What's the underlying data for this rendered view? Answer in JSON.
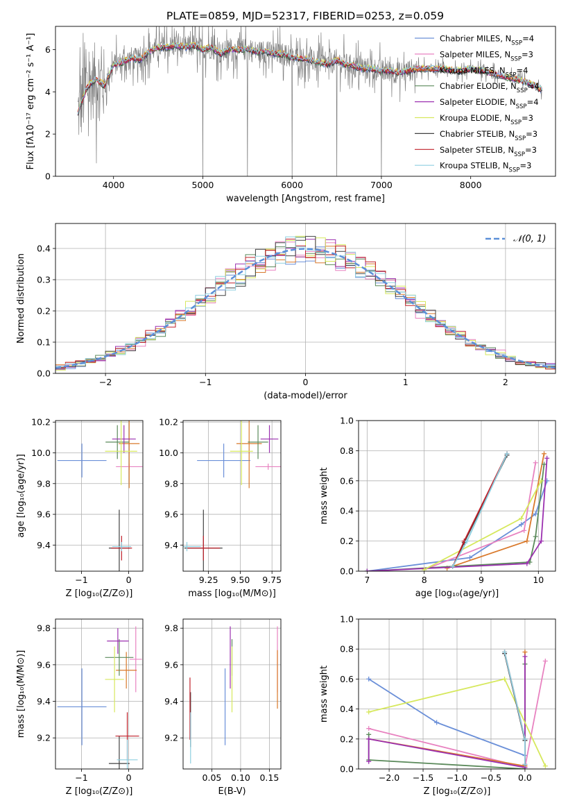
{
  "chart_data": [
    {
      "type": "line",
      "title": "PLATE=0859, MJD=52317, FIBERID=0253, z=0.059",
      "xlabel": "wavelength [Angstrom, rest frame]",
      "ylabel": "Flux [fλ10⁻¹⁷ erg cm⁻² s⁻¹ A⁻¹]",
      "xlim": [
        3350,
        8950
      ],
      "ylim": [
        0,
        7.1
      ],
      "xticks": [
        4000,
        5000,
        6000,
        7000,
        8000
      ],
      "yticks": [
        0,
        2,
        4,
        6
      ],
      "grid": false,
      "legend_placement": "right",
      "data_color": "#808080",
      "series": [
        {
          "name": "Chabrier MILES, N_SSP=4",
          "color": "#6a8fd8"
        },
        {
          "name": "Salpeter MILES, N_SSP=3",
          "color": "#e882c0"
        },
        {
          "name": "Kroupa MILES, N_SSP=4",
          "color": "#d9792b"
        },
        {
          "name": "Chabrier ELODIE, N_SSP=4",
          "color": "#5b8a5b"
        },
        {
          "name": "Salpeter ELODIE, N_SSP=4",
          "color": "#9b30b0"
        },
        {
          "name": "Kroupa ELODIE, N_SSP=3",
          "color": "#d6e85c"
        },
        {
          "name": "Chabrier STELIB, N_SSP=3",
          "color": "#404040"
        },
        {
          "name": "Salpeter STELIB, N_SSP=3",
          "color": "#c0202a"
        },
        {
          "name": "Kroupa STELIB, N_SSP=3",
          "color": "#8ecfe0"
        }
      ],
      "spectrum_shape": [
        [
          3600,
          3.0
        ],
        [
          3700,
          4.2
        ],
        [
          3800,
          4.6
        ],
        [
          3900,
          4.3
        ],
        [
          4000,
          5.3
        ],
        [
          4100,
          5.4
        ],
        [
          4200,
          5.6
        ],
        [
          4300,
          5.5
        ],
        [
          4400,
          5.9
        ],
        [
          4500,
          6.1
        ],
        [
          4600,
          6.1
        ],
        [
          4700,
          6.2
        ],
        [
          4800,
          6.1
        ],
        [
          4900,
          6.2
        ],
        [
          5000,
          6.0
        ],
        [
          5100,
          6.1
        ],
        [
          5200,
          5.8
        ],
        [
          5300,
          6.0
        ],
        [
          5400,
          6.0
        ],
        [
          5500,
          6.0
        ],
        [
          5600,
          5.9
        ],
        [
          5700,
          5.9
        ],
        [
          5800,
          5.8
        ],
        [
          5900,
          5.8
        ],
        [
          6000,
          5.6
        ],
        [
          6100,
          5.6
        ],
        [
          6200,
          5.5
        ],
        [
          6300,
          5.4
        ],
        [
          6400,
          5.3
        ],
        [
          6500,
          5.5
        ],
        [
          6600,
          5.3
        ],
        [
          6700,
          5.2
        ],
        [
          6800,
          5.1
        ],
        [
          6900,
          5.1
        ],
        [
          7000,
          5.0
        ],
        [
          7100,
          5.0
        ],
        [
          7200,
          4.9
        ],
        [
          7300,
          5.0
        ],
        [
          7400,
          5.1
        ],
        [
          7500,
          5.1
        ],
        [
          7600,
          5.1
        ],
        [
          7700,
          5.1
        ],
        [
          7800,
          5.0
        ],
        [
          7900,
          5.0
        ],
        [
          8000,
          5.1
        ],
        [
          8100,
          5.0
        ],
        [
          8200,
          4.9
        ],
        [
          8300,
          4.8
        ],
        [
          8400,
          4.7
        ],
        [
          8500,
          4.6
        ],
        [
          8600,
          4.5
        ],
        [
          8700,
          4.3
        ],
        [
          8800,
          4.1
        ]
      ]
    },
    {
      "type": "line",
      "xlabel": "(data-model)/error",
      "ylabel": "Normed distribution",
      "xlim": [
        -2.5,
        2.5
      ],
      "ylim": [
        0,
        0.48
      ],
      "xticks": [
        -2,
        -1,
        0,
        1,
        2
      ],
      "yticks": [
        0.0,
        0.1,
        0.2,
        0.3,
        0.4
      ],
      "grid": true,
      "legend": "𝒩(0, 1)",
      "legend_placement": "top-right",
      "bin_width": 0.1
    },
    {
      "type": "scatter",
      "xlabel": "Z [log₁₀(Z/Z⊙)]",
      "ylabel": "age  [log₁₀(age/yr)]",
      "xlim": [
        -1.55,
        0.3
      ],
      "ylim": [
        9.23,
        10.21
      ],
      "xticks": [
        -1,
        0
      ],
      "yticks": [
        9.4,
        9.6,
        9.8,
        10.0,
        10.2
      ],
      "grid": true,
      "points": [
        {
          "color": "#6a8fd8",
          "x": -0.99,
          "y": 9.95,
          "xerr": 0.52,
          "yerr": 0.11
        },
        {
          "color": "#e882c0",
          "x": 0.01,
          "y": 9.91,
          "xerr": 0.28,
          "yerr": 0.02
        },
        {
          "color": "#d9792b",
          "x": 0.01,
          "y": 10.06,
          "xerr": 0.22,
          "yerr": 0.29
        },
        {
          "color": "#5b8a5b",
          "x": -0.24,
          "y": 10.07,
          "xerr": 0.25,
          "yerr": 0.11
        },
        {
          "color": "#9b30b0",
          "x": -0.1,
          "y": 10.09,
          "xerr": 0.25,
          "yerr": 0.09
        },
        {
          "color": "#d6e85c",
          "x": -0.16,
          "y": 10.01,
          "xerr": 0.34,
          "yerr": 0.22
        },
        {
          "color": "#404040",
          "x": -0.2,
          "y": 9.38,
          "xerr": 0.22,
          "yerr": 0.25
        },
        {
          "color": "#c0202a",
          "x": -0.15,
          "y": 9.38,
          "xerr": 0.22,
          "yerr": 0.08
        },
        {
          "color": "#8ecfe0",
          "x": -0.15,
          "y": 9.39,
          "xerr": 0.2,
          "yerr": 0.03
        }
      ]
    },
    {
      "type": "scatter",
      "xlabel": "mass [log₁₀(M/M⊙)]",
      "ylabel": "",
      "xlim": [
        9.05,
        9.82
      ],
      "ylim": [
        9.23,
        10.21
      ],
      "xticks": [
        9.25,
        9.5,
        9.75
      ],
      "yticks": [
        9.4,
        9.6,
        9.8,
        10.0,
        10.2
      ],
      "grid": true,
      "points": [
        {
          "color": "#6a8fd8",
          "x": 9.37,
          "y": 9.95,
          "xerr": 0.21,
          "yerr": 0.11
        },
        {
          "color": "#e882c0",
          "x": 9.72,
          "y": 9.91,
          "xerr": 0.1,
          "yerr": 0.02
        },
        {
          "color": "#d9792b",
          "x": 9.57,
          "y": 10.06,
          "xerr": 0.1,
          "yerr": 0.29
        },
        {
          "color": "#5b8a5b",
          "x": 9.64,
          "y": 10.07,
          "xerr": 0.08,
          "yerr": 0.11
        },
        {
          "color": "#9b30b0",
          "x": 9.73,
          "y": 10.09,
          "xerr": 0.07,
          "yerr": 0.09
        },
        {
          "color": "#d6e85c",
          "x": 9.51,
          "y": 10.01,
          "xerr": 0.09,
          "yerr": 0.22
        },
        {
          "color": "#404040",
          "x": 9.21,
          "y": 9.38,
          "xerr": 0.15,
          "yerr": 0.25
        },
        {
          "color": "#c0202a",
          "x": 9.21,
          "y": 9.38,
          "xerr": 0.13,
          "yerr": 0.08
        },
        {
          "color": "#8ecfe0",
          "x": 9.08,
          "y": 9.39,
          "xerr": 0.11,
          "yerr": 0.03
        }
      ]
    },
    {
      "type": "line",
      "xlabel": "age  [log₁₀(age/yr)]",
      "ylabel": "mass weight",
      "xlim": [
        6.85,
        10.3
      ],
      "ylim": [
        0,
        1.0
      ],
      "xticks": [
        7,
        8,
        9,
        10
      ],
      "yticks": [
        0.0,
        0.2,
        0.4,
        0.6,
        0.8,
        1.0
      ],
      "grid": true,
      "series": [
        {
          "color": "#6a8fd8",
          "x": [
            7.0,
            8.8,
            9.7,
            9.95,
            10.15
          ],
          "y": [
            0.0,
            0.09,
            0.31,
            0.38,
            0.6
          ]
        },
        {
          "color": "#e882c0",
          "x": [
            8.0,
            9.75,
            9.95
          ],
          "y": [
            0.01,
            0.27,
            0.72
          ]
        },
        {
          "color": "#d9792b",
          "x": [
            8.4,
            9.8,
            10.1
          ],
          "y": [
            0.02,
            0.2,
            0.78
          ]
        },
        {
          "color": "#5b8a5b",
          "x": [
            7.0,
            9.85,
            9.95,
            10.1
          ],
          "y": [
            0.0,
            0.06,
            0.23,
            0.71
          ]
        },
        {
          "color": "#9b30b0",
          "x": [
            7.0,
            9.8,
            10.05,
            10.15
          ],
          "y": [
            0.0,
            0.05,
            0.2,
            0.75
          ]
        },
        {
          "color": "#d6e85c",
          "x": [
            8.0,
            9.7,
            10.05
          ],
          "y": [
            0.01,
            0.35,
            0.6
          ]
        },
        {
          "color": "#404040",
          "x": [
            8.5,
            8.7,
            9.45
          ],
          "y": [
            0.03,
            0.19,
            0.77
          ]
        },
        {
          "color": "#c0202a",
          "x": [
            8.5,
            8.7,
            9.45
          ],
          "y": [
            0.03,
            0.2,
            0.78
          ]
        },
        {
          "color": "#8ecfe0",
          "x": [
            8.5,
            8.75,
            9.45
          ],
          "y": [
            0.03,
            0.2,
            0.78
          ]
        }
      ]
    },
    {
      "type": "scatter",
      "xlabel": "Z [log₁₀(Z/Z⊙)]",
      "ylabel": "mass [log₁₀(M/M⊙)]",
      "xlim": [
        -1.55,
        0.3
      ],
      "ylim": [
        9.03,
        9.85
      ],
      "xticks": [
        -1,
        0
      ],
      "yticks": [
        9.2,
        9.4,
        9.6,
        9.8
      ],
      "grid": true,
      "points": [
        {
          "color": "#6a8fd8",
          "x": -0.99,
          "y": 9.37,
          "xerr": 0.52,
          "yerr": 0.21
        },
        {
          "color": "#e882c0",
          "x": 0.15,
          "y": 9.63,
          "xerr": 0.13,
          "yerr": 0.18
        },
        {
          "color": "#d9792b",
          "x": -0.05,
          "y": 9.57,
          "xerr": 0.22,
          "yerr": 0.1
        },
        {
          "color": "#5b8a5b",
          "x": -0.2,
          "y": 9.64,
          "xerr": 0.3,
          "yerr": 0.1
        },
        {
          "color": "#9b30b0",
          "x": -0.23,
          "y": 9.73,
          "xerr": 0.23,
          "yerr": 0.07
        },
        {
          "color": "#d6e85c",
          "x": -0.3,
          "y": 9.52,
          "xerr": 0.2,
          "yerr": 0.18
        },
        {
          "color": "#404040",
          "x": -0.2,
          "y": 9.06,
          "xerr": 0.22,
          "yerr": 0.15
        },
        {
          "color": "#c0202a",
          "x": -0.03,
          "y": 9.21,
          "xerr": 0.25,
          "yerr": 0.13
        },
        {
          "color": "#8ecfe0",
          "x": -0.03,
          "y": 9.08,
          "xerr": 0.22,
          "yerr": 0.11
        }
      ]
    },
    {
      "type": "scatter",
      "xlabel": "E(B-V)",
      "ylabel": "",
      "xlim": [
        0.0,
        0.17
      ],
      "ylim": [
        9.03,
        9.85
      ],
      "xticks": [
        0.05,
        0.1,
        0.15
      ],
      "yticks": [
        9.2,
        9.4,
        9.6,
        9.8
      ],
      "grid": true,
      "points": [
        {
          "color": "#6a8fd8",
          "x": 0.073,
          "y": 9.37,
          "yerr": 0.21
        },
        {
          "color": "#e882c0",
          "x": 0.164,
          "y": 9.63,
          "yerr": 0.18
        },
        {
          "color": "#d9792b",
          "x": 0.164,
          "y": 9.52,
          "yerr": 0.16
        },
        {
          "color": "#5b8a5b",
          "x": 0.085,
          "y": 9.64,
          "yerr": 0.1
        },
        {
          "color": "#9b30b0",
          "x": 0.082,
          "y": 9.64,
          "yerr": 0.17
        },
        {
          "color": "#d6e85c",
          "x": 0.085,
          "y": 9.52,
          "yerr": 0.18
        },
        {
          "color": "#404040",
          "x": 0.013,
          "y": 9.3,
          "yerr": 0.15
        },
        {
          "color": "#c0202a",
          "x": 0.012,
          "y": 9.36,
          "yerr": 0.17
        },
        {
          "color": "#8ecfe0",
          "x": 0.013,
          "y": 9.2,
          "yerr": 0.14
        }
      ]
    },
    {
      "type": "line",
      "xlabel": "Z [log₁₀(Z/Z⊙)]",
      "ylabel": "mass weight",
      "xlim": [
        -2.45,
        0.45
      ],
      "ylim": [
        0,
        1.0
      ],
      "xticks": [
        -2.0,
        -1.5,
        -1.0,
        -0.5,
        0.0
      ],
      "yticks": [
        0.0,
        0.2,
        0.4,
        0.6,
        0.8,
        1.0
      ],
      "grid": true,
      "series": [
        {
          "color": "#6a8fd8",
          "x": [
            -2.3,
            -1.3,
            0.0
          ],
          "y": [
            0.6,
            0.31,
            0.09
          ]
        },
        {
          "color": "#e882c0",
          "x": [
            -2.3,
            0.0,
            0.3
          ],
          "y": [
            0.27,
            0.01,
            0.72
          ]
        },
        {
          "color": "#d9792b",
          "x": [
            -2.3,
            0.0,
            0.0
          ],
          "y": [
            0.2,
            0.02,
            0.78
          ]
        },
        {
          "color": "#5b8a5b",
          "x": [
            -2.3,
            -2.3,
            0.0,
            0.0
          ],
          "y": [
            0.23,
            0.06,
            0.0,
            0.7
          ]
        },
        {
          "color": "#9b30b0",
          "x": [
            -2.3,
            -2.3,
            0.0,
            0.0
          ],
          "y": [
            0.05,
            0.2,
            0.01,
            0.75
          ]
        },
        {
          "color": "#d6e85c",
          "x": [
            -2.3,
            -0.3,
            0.3
          ],
          "y": [
            0.38,
            0.6,
            0.02
          ]
        },
        {
          "color": "#404040",
          "x": [
            -0.3,
            0.0,
            0.0
          ],
          "y": [
            0.77,
            0.19,
            0.03
          ]
        },
        {
          "color": "#c0202a",
          "x": [
            -0.3,
            0.0,
            0.0
          ],
          "y": [
            0.78,
            0.2,
            0.03
          ]
        },
        {
          "color": "#8ecfe0",
          "x": [
            -0.3,
            0.0,
            0.0
          ],
          "y": [
            0.78,
            0.2,
            0.03
          ]
        }
      ]
    }
  ]
}
